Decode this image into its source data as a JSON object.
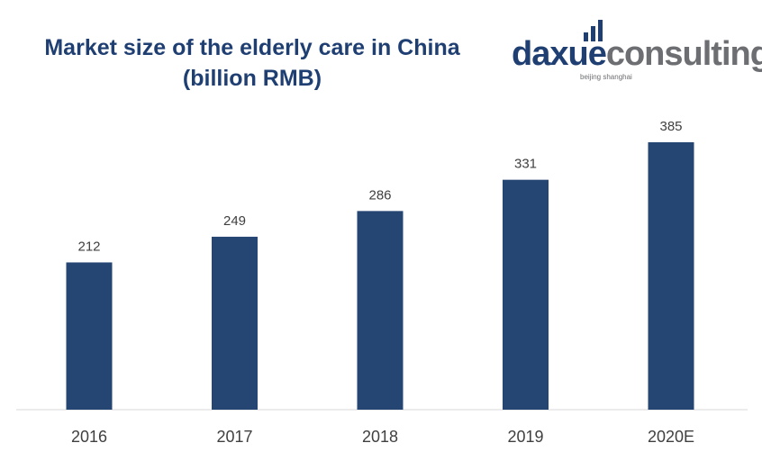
{
  "title": {
    "line1": "Market size of the elderly care in China",
    "line2": "(billion RMB)"
  },
  "logo": {
    "word_a": "daxue",
    "word_b": "consulting",
    "subtitle": "beijing shanghai",
    "colors": {
      "primary": "#1f3f73",
      "secondary": "#6d6e71"
    }
  },
  "chart_data": {
    "type": "bar",
    "title": "Market size of the elderly care in China (billion RMB)",
    "categories": [
      "2016",
      "2017",
      "2018",
      "2019",
      "2020E"
    ],
    "values": [
      212,
      249,
      286,
      331,
      385
    ],
    "xlabel": "",
    "ylabel": "",
    "ylim": [
      0,
      385
    ],
    "bar_color": "#254573",
    "data_labels": true,
    "grid": false,
    "legend": "none"
  }
}
